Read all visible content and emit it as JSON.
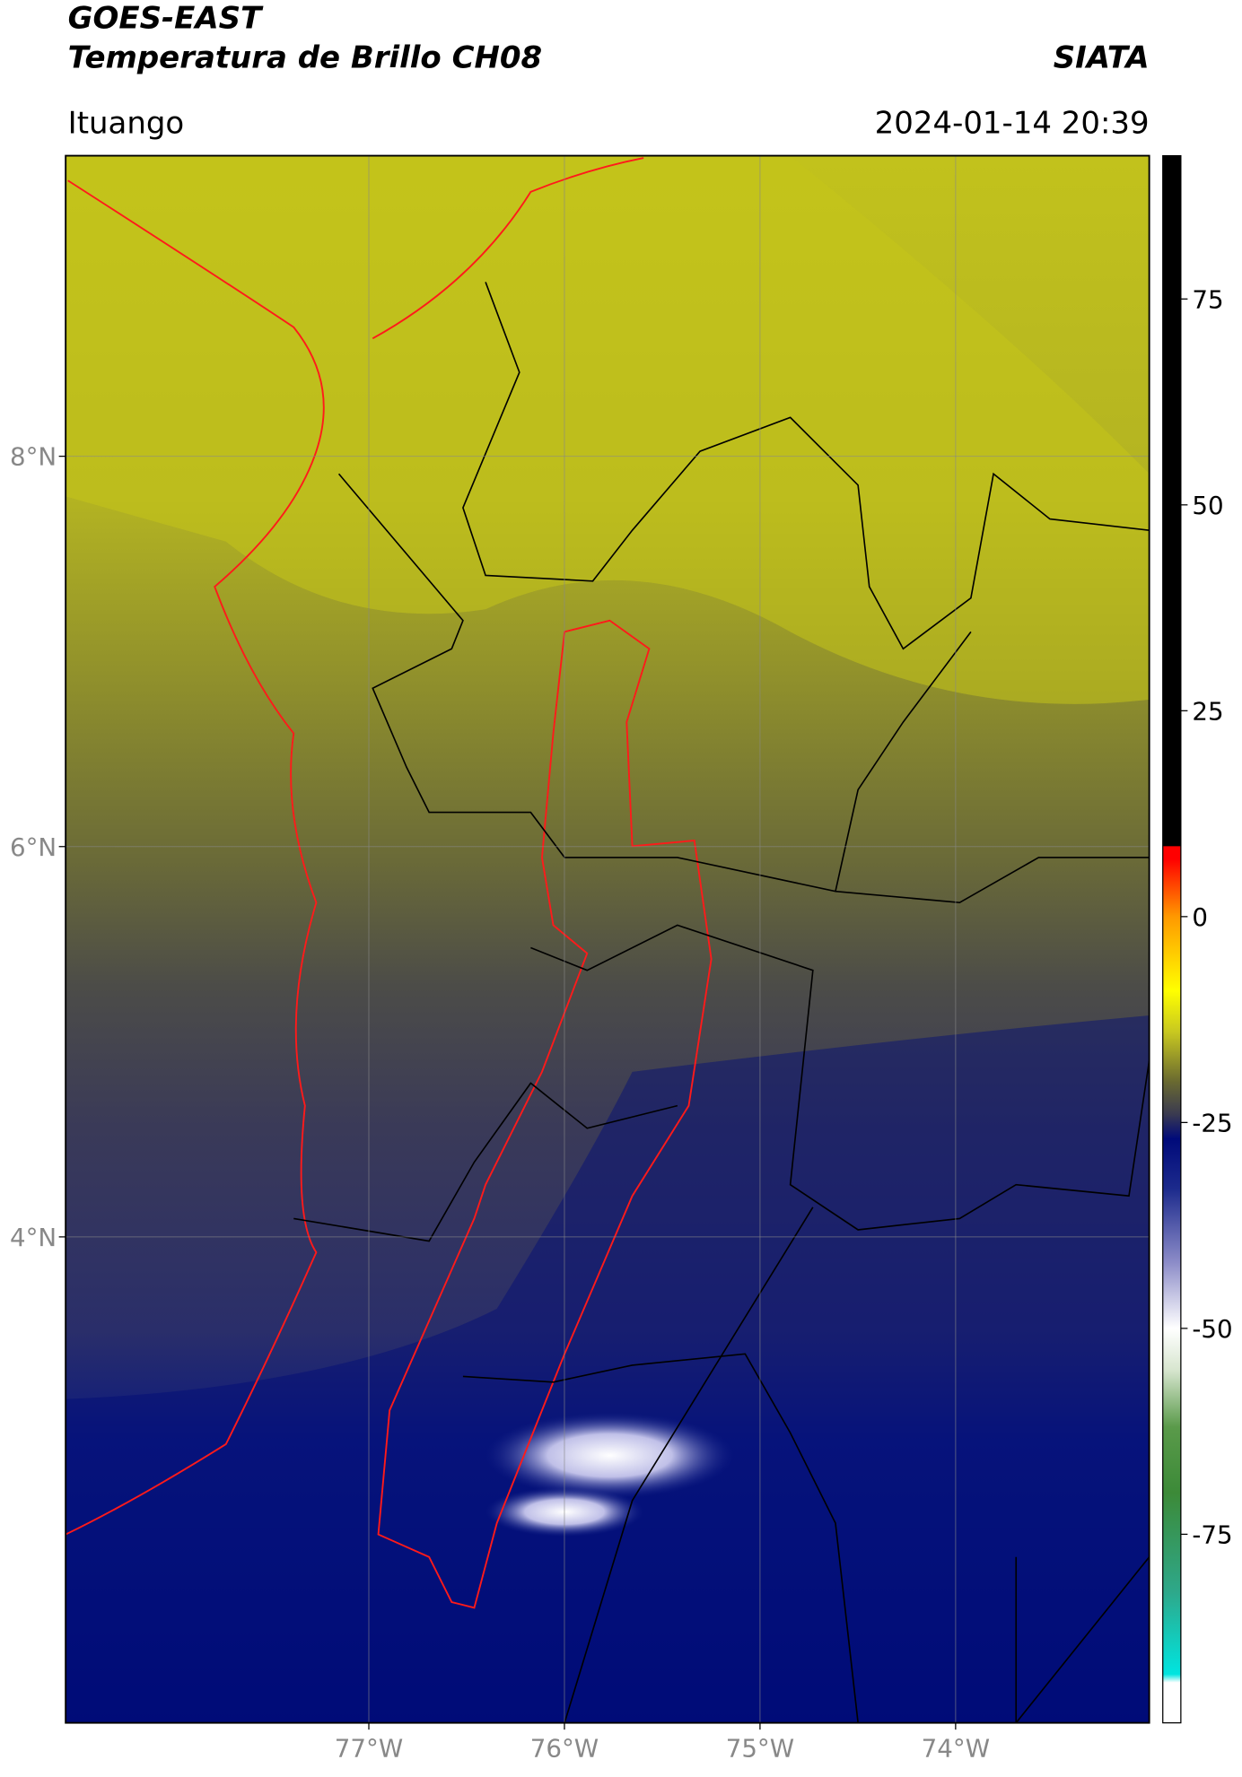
{
  "header": {
    "satellite": "GOES-EAST",
    "product": "Temperatura de Brillo CH08",
    "agency": "SIATA",
    "region": "Ituango",
    "datetime": "2024-01-14 20:39"
  },
  "map": {
    "xlim": [
      -78.55,
      -73.01
    ],
    "ylim": [
      1.51,
      9.54
    ],
    "xticks": [
      {
        "value": -77,
        "label": "77°W"
      },
      {
        "value": -76,
        "label": "76°W"
      },
      {
        "value": -75,
        "label": "75°W"
      },
      {
        "value": -74,
        "label": "74°W"
      }
    ],
    "yticks": [
      {
        "value": 4,
        "label": "4°N"
      },
      {
        "value": 6,
        "label": "6°N"
      },
      {
        "value": 8,
        "label": "8°N"
      }
    ],
    "grid": true
  },
  "colorbar": {
    "lim": [
      -97.9,
      92.4
    ],
    "ticks": [
      75,
      50,
      25,
      0,
      -25,
      -50,
      -75
    ],
    "stops": [
      {
        "value": -97.9,
        "color": "#ffffff"
      },
      {
        "value": -93,
        "color": "#ffffff"
      },
      {
        "value": -92,
        "color": "#00e5e0"
      },
      {
        "value": -82,
        "color": "#2ea88a"
      },
      {
        "value": -70,
        "color": "#3c8a38"
      },
      {
        "value": -62,
        "color": "#5a9a4a"
      },
      {
        "value": -55,
        "color": "#d8e6d0"
      },
      {
        "value": -50,
        "color": "#ffffff"
      },
      {
        "value": -42,
        "color": "#8c8cc8"
      },
      {
        "value": -33,
        "color": "#1c2a8c"
      },
      {
        "value": -27,
        "color": "#000a7a"
      },
      {
        "value": -24,
        "color": "#3a3a50"
      },
      {
        "value": -20,
        "color": "#6a6a30"
      },
      {
        "value": -14,
        "color": "#c8c820"
      },
      {
        "value": -9,
        "color": "#ffff00"
      },
      {
        "value": 0,
        "color": "#ff9900"
      },
      {
        "value": 7,
        "color": "#ff0000"
      },
      {
        "value": 8.5,
        "color": "#ff0000"
      },
      {
        "value": 8.6,
        "color": "#000000"
      },
      {
        "value": 92.4,
        "color": "#000000"
      }
    ]
  }
}
